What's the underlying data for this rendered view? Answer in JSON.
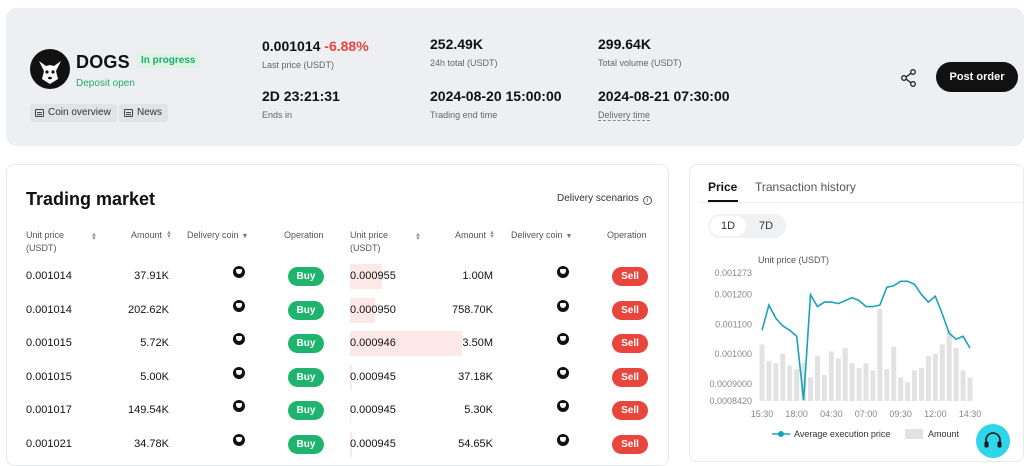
{
  "header": {
    "token_name": "DOGS",
    "status_badge": "In progress",
    "deposit_status": "Deposit open",
    "links": [
      "Coin overview",
      "News"
    ],
    "stats": {
      "last_price": "0.001014",
      "change": "-6.88%",
      "last_price_label": "Last price (USDT)",
      "total_24h": "252.49K",
      "total_24h_label": "24h total (USDT)",
      "total_volume": "299.64K",
      "total_volume_label": "Total volume (USDT)",
      "ends_in": "2D 23:21:31",
      "ends_in_label": "Ends in",
      "trading_end_time": "2024-08-20 15:00:00",
      "trading_end_time_label": "Trading end time",
      "delivery_time": "2024-08-21 07:30:00",
      "delivery_time_label": "Delivery time"
    },
    "post_order_label": "Post order"
  },
  "market": {
    "title": "Trading market",
    "delivery_scenarios": "Delivery scenarios",
    "columns": {
      "unit_price_1": "Unit price",
      "unit_price_2": "(USDT)",
      "amount": "Amount",
      "delivery_coin": "Delivery coin",
      "operation": "Operation"
    },
    "buy_rows": [
      {
        "price": "0.001014",
        "amount": "37.91K",
        "action": "Buy"
      },
      {
        "price": "0.001014",
        "amount": "202.62K",
        "action": "Buy"
      },
      {
        "price": "0.001015",
        "amount": "5.72K",
        "action": "Buy"
      },
      {
        "price": "0.001015",
        "amount": "5.00K",
        "action": "Buy"
      },
      {
        "price": "0.001017",
        "amount": "149.54K",
        "action": "Buy"
      },
      {
        "price": "0.001021",
        "amount": "34.78K",
        "action": "Buy"
      }
    ],
    "sell_rows": [
      {
        "price": "0.000955",
        "amount": "1.00M",
        "action": "Sell",
        "depth": 0.29
      },
      {
        "price": "0.000950",
        "amount": "758.70K",
        "action": "Sell",
        "depth": 0.22
      },
      {
        "price": "0.000946",
        "amount": "3.50M",
        "action": "Sell",
        "depth": 1.0
      },
      {
        "price": "0.000945",
        "amount": "37.18K",
        "action": "Sell",
        "depth": 0.02
      },
      {
        "price": "0.000945",
        "amount": "5.30K",
        "action": "Sell",
        "depth": 0.01
      },
      {
        "price": "0.000945",
        "amount": "54.65K",
        "action": "Sell",
        "depth": 0.02
      }
    ]
  },
  "price_panel": {
    "tabs": [
      "Price",
      "Transaction history"
    ],
    "ranges": [
      "1D",
      "7D"
    ],
    "active_range": "1D"
  },
  "chart_data": {
    "type": "line",
    "ylabel": "Unit price (USDT)",
    "y_ticks": [
      "0.001273",
      "0.001200",
      "0.001100",
      "0.001000",
      "0.0009000",
      "0.0008420"
    ],
    "ylim": [
      0.000842,
      0.001273
    ],
    "x_ticks": [
      "15:30",
      "18:00",
      "04:30",
      "07:00",
      "09:30",
      "12:00",
      "14:30"
    ],
    "series": [
      {
        "name": "Average execution price",
        "color": "#1aa3b8",
        "values": [
          0.00108,
          0.001165,
          0.00112,
          0.001095,
          0.00108,
          0.00106,
          0.000845,
          0.0012,
          0.00116,
          0.001175,
          0.001175,
          0.00117,
          0.00118,
          0.00119,
          0.00118,
          0.00116,
          0.00116,
          0.001165,
          0.001225,
          0.00123,
          0.001245,
          0.001245,
          0.001235,
          0.0012,
          0.001175,
          0.001195,
          0.001135,
          0.00107,
          0.00105,
          0.00106,
          0.00102
        ]
      },
      {
        "name": "Amount",
        "color": "#e2e2e2",
        "bar_heights_relative": [
          0.48,
          0.34,
          0.32,
          0.4,
          0.3,
          0.27,
          0.32,
          0.2,
          0.38,
          0.22,
          0.42,
          0.36,
          0.45,
          0.32,
          0.28,
          0.32,
          0.26,
          0.78,
          0.27,
          0.46,
          0.2,
          0.16,
          0.26,
          0.28,
          0.38,
          0.4,
          0.48,
          0.6,
          0.45,
          0.26,
          0.2
        ]
      }
    ]
  }
}
